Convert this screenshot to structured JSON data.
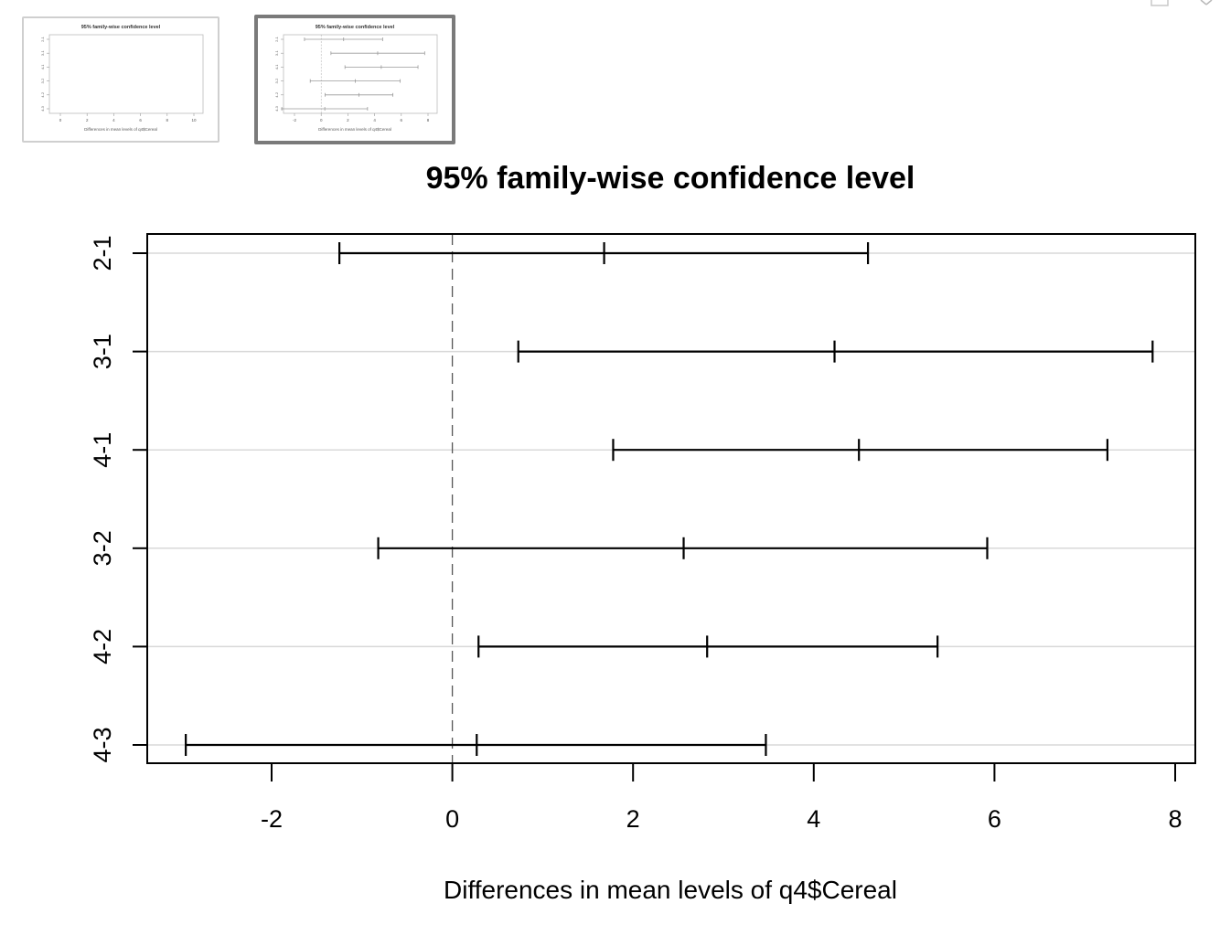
{
  "thumbnails": [
    {
      "title": "95% family-wise confidence level",
      "xlabel": "Differences in mean levels of q4$Cereal",
      "ticks": [
        "0",
        "2",
        "4",
        "6",
        "8",
        "10"
      ],
      "selected": false
    },
    {
      "title": "95% family-wise confidence level",
      "xlabel": "Differences in mean levels of q4$Cereal",
      "ticks": [
        "-2",
        "0",
        "2",
        "4",
        "6",
        "8"
      ],
      "selected": true
    }
  ],
  "window_controls": {
    "expand_icon": "expand-icon",
    "close_icon": "close-icon"
  },
  "colors": {
    "line": "#000000",
    "grid": "#d9d9d9",
    "thumb_line": "#9a9a9a"
  },
  "chart_data": {
    "type": "errorbar",
    "title": "95% family-wise confidence level",
    "xlabel": "Differences in mean levels of q4$Cereal",
    "ylabel": "",
    "xlim": [
      -3.3,
      8.3
    ],
    "xticks": [
      -2,
      0,
      2,
      4,
      6,
      8
    ],
    "xtick_labels": [
      "-2",
      "0",
      "2",
      "4",
      "6",
      "8"
    ],
    "reference_line": 0,
    "grid": true,
    "comparisons": [
      {
        "label": "2-1",
        "lwr": -1.25,
        "diff": 1.68,
        "upr": 4.6
      },
      {
        "label": "3-1",
        "lwr": 0.73,
        "diff": 4.23,
        "upr": 7.75
      },
      {
        "label": "4-1",
        "lwr": 1.78,
        "diff": 4.5,
        "upr": 7.25
      },
      {
        "label": "3-2",
        "lwr": -0.82,
        "diff": 2.56,
        "upr": 5.92
      },
      {
        "label": "4-2",
        "lwr": 0.29,
        "diff": 2.82,
        "upr": 5.37
      },
      {
        "label": "4-3",
        "lwr": -2.95,
        "diff": 0.27,
        "upr": 3.47
      }
    ]
  }
}
